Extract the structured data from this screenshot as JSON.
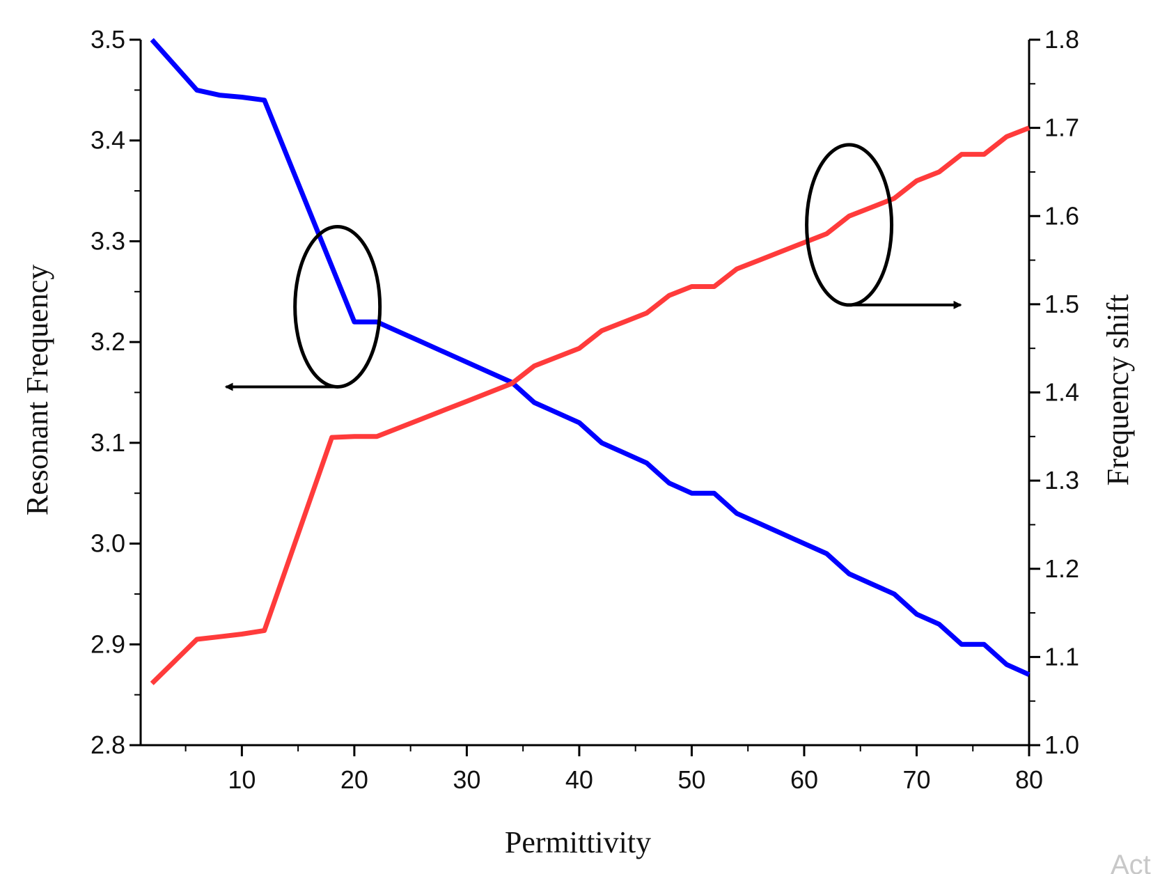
{
  "chart_data": {
    "type": "line",
    "xlabel": "Permittivity",
    "ylabel_left": "Resonant Frequency",
    "ylabel_right": "Frequency shift",
    "xlim": [
      1,
      80
    ],
    "ylim_left": [
      2.8,
      3.5
    ],
    "ylim_right": [
      1.0,
      1.8
    ],
    "x_ticks": [
      10,
      20,
      30,
      40,
      50,
      60,
      70,
      80
    ],
    "x_minor_ticks": [
      5,
      15,
      25,
      35,
      45,
      55,
      65,
      75
    ],
    "y_left_ticks": [
      2.8,
      2.9,
      3.0,
      3.1,
      3.2,
      3.3,
      3.4,
      3.5
    ],
    "y_right_ticks": [
      1.0,
      1.1,
      1.2,
      1.3,
      1.4,
      1.5,
      1.6,
      1.7,
      1.8
    ],
    "grid": false,
    "series": [
      {
        "name": "Resonant Frequency",
        "axis": "left",
        "color": "#0000ff",
        "x": [
          2,
          6,
          8,
          10,
          12,
          14,
          16,
          18,
          20,
          22,
          24,
          26,
          28,
          30,
          32,
          34,
          36,
          38,
          40,
          42,
          44,
          46,
          48,
          50,
          52,
          54,
          56,
          58,
          60,
          62,
          64,
          66,
          68,
          70,
          72,
          74,
          76,
          78,
          80
        ],
        "y": [
          3.5,
          3.45,
          3.445,
          3.443,
          3.44,
          3.385,
          3.33,
          3.275,
          3.22,
          3.22,
          3.21,
          3.2,
          3.19,
          3.18,
          3.17,
          3.16,
          3.14,
          3.13,
          3.12,
          3.1,
          3.09,
          3.08,
          3.06,
          3.05,
          3.05,
          3.03,
          3.02,
          3.01,
          3.0,
          2.99,
          2.97,
          2.96,
          2.95,
          2.93,
          2.92,
          2.9,
          2.9,
          2.88,
          2.87
        ]
      },
      {
        "name": "Frequency shift",
        "axis": "right",
        "color": "#ff3b3b",
        "x": [
          2,
          6,
          8,
          10,
          12,
          14,
          16,
          18,
          20,
          22,
          24,
          26,
          28,
          30,
          32,
          34,
          36,
          38,
          40,
          42,
          44,
          46,
          48,
          50,
          52,
          54,
          56,
          58,
          60,
          62,
          64,
          66,
          68,
          70,
          72,
          74,
          76,
          78,
          80
        ],
        "y": [
          1.07,
          1.12,
          1.123,
          1.126,
          1.13,
          1.203,
          1.276,
          1.349,
          1.35,
          1.35,
          1.36,
          1.37,
          1.38,
          1.39,
          1.4,
          1.41,
          1.43,
          1.44,
          1.45,
          1.47,
          1.48,
          1.49,
          1.51,
          1.52,
          1.52,
          1.54,
          1.55,
          1.56,
          1.57,
          1.58,
          1.6,
          1.61,
          1.62,
          1.64,
          1.65,
          1.67,
          1.67,
          1.69,
          1.7
        ]
      }
    ],
    "annotations": [
      {
        "type": "ellipse-with-arrow",
        "target_series": "Resonant Frequency",
        "x": 18.5,
        "y_left": 3.235,
        "arrow_direction": "left",
        "arrow_target_axis": "left"
      },
      {
        "type": "ellipse-with-arrow",
        "target_series": "Frequency shift",
        "x": 64,
        "y_right": 1.59,
        "arrow_direction": "right",
        "arrow_target_axis": "right"
      }
    ]
  },
  "watermark_text": "Act"
}
